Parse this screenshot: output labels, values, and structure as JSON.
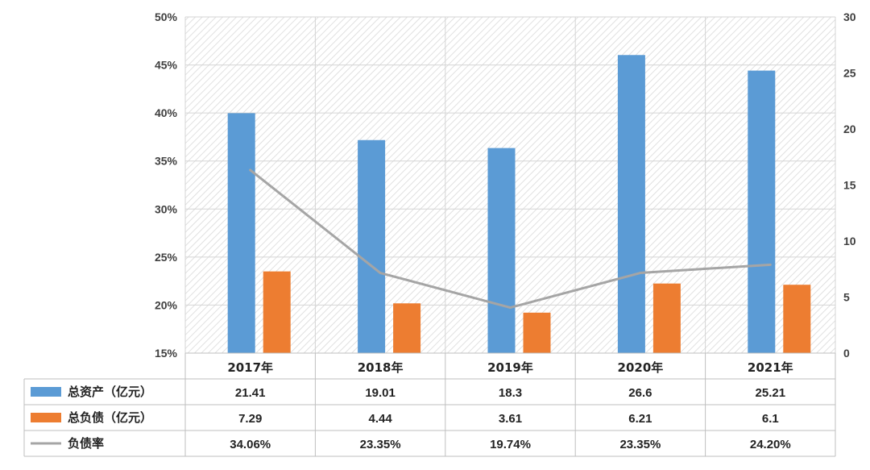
{
  "chart_data": {
    "type": "bar",
    "categories": [
      "2017年",
      "2018年",
      "2019年",
      "2020年",
      "2021年"
    ],
    "series": [
      {
        "name": "总资产（亿元）",
        "kind": "bar",
        "axis": "right",
        "color": "#5b9bd5",
        "values": [
          21.41,
          19.01,
          18.3,
          26.6,
          25.21
        ],
        "labels": [
          "21.41",
          "19.01",
          "18.3",
          "26.6",
          "25.21"
        ]
      },
      {
        "name": "总负债（亿元）",
        "kind": "bar",
        "axis": "right",
        "color": "#ed7d31",
        "values": [
          7.29,
          4.44,
          3.61,
          6.21,
          6.1
        ],
        "labels": [
          "7.29",
          "4.44",
          "3.61",
          "6.21",
          "6.1"
        ]
      },
      {
        "name": "负债率",
        "kind": "line",
        "axis": "left",
        "color": "#a5a5a5",
        "values": [
          34.06,
          23.35,
          19.74,
          23.35,
          24.2
        ],
        "labels": [
          "34.06%",
          "23.35%",
          "19.74%",
          "23.35%",
          "24.20%"
        ]
      }
    ],
    "y_left": {
      "ylim": [
        15,
        50
      ],
      "ticks": [
        "15%",
        "20%",
        "25%",
        "30%",
        "35%",
        "40%",
        "45%",
        "50%"
      ]
    },
    "y_right": {
      "ylim": [
        0,
        30
      ],
      "ticks": [
        "0",
        "5",
        "10",
        "15",
        "20",
        "25",
        "30"
      ]
    },
    "grid": true,
    "legend": "data-table-below"
  }
}
